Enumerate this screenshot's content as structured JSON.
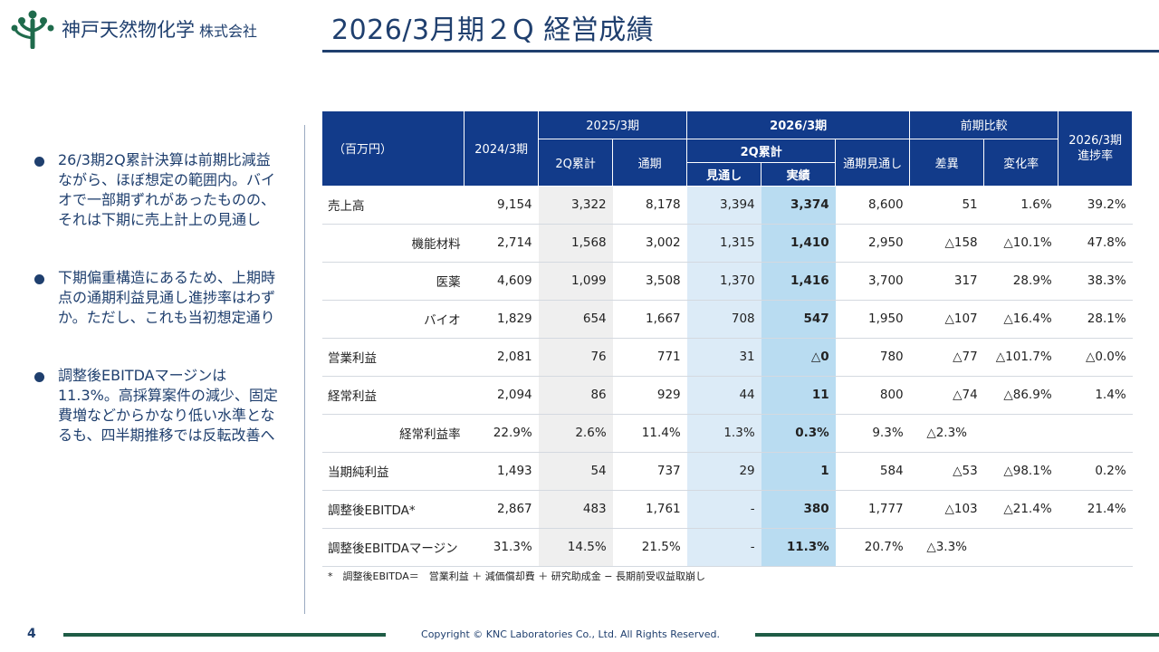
{
  "header": {
    "company_name": "神戸天然物化学",
    "company_suffix": "株式会社",
    "title": "2026/3月期２Q 経営成績"
  },
  "bullets": [
    "26/3期2Q累計決算は前期比減益ながら、ほぼ想定の範囲内。バイオで一部期ずれがあったものの、それは下期に売上計上の見通し",
    "下期偏重構造にあるため、上期時点の通期利益見通し進捗率はわずか。ただし、これも当初想定通り",
    "調整後EBITDAマージンは11.3%。高採算案件の減少、固定費増などからかなり低い水準となるも、四半期推移では反転改善へ"
  ],
  "table": {
    "unit": "（百万円）",
    "col_2024": "2024/3期",
    "col_2025": "2025/3期",
    "col_2025_2q": "2Q累計",
    "col_2025_full": "通期",
    "col_2026": "2026/3期",
    "col_2026_2q": "2Q累計",
    "col_2026_forecast": "見通し",
    "col_2026_actual": "実績",
    "col_2026_full_forecast": "通期見通し",
    "col_yoy": "前期比較",
    "col_diff": "差異",
    "col_rate": "変化率",
    "col_progress": "2026/3期\n進捗率",
    "rows": [
      {
        "label": "売上高",
        "sub": false,
        "v2024": "9,154",
        "v2025_2q": "3,322",
        "v2025_full": "8,178",
        "f2026": "3,394",
        "a2026": "3,374",
        "ff2026": "8,600",
        "diff": "51",
        "rate": "1.6%",
        "progress": "39.2%"
      },
      {
        "label": "機能材料",
        "sub": true,
        "v2024": "2,714",
        "v2025_2q": "1,568",
        "v2025_full": "3,002",
        "f2026": "1,315",
        "a2026": "1,410",
        "ff2026": "2,950",
        "diff": "△158",
        "rate": "△10.1%",
        "progress": "47.8%"
      },
      {
        "label": "医薬",
        "sub": true,
        "v2024": "4,609",
        "v2025_2q": "1,099",
        "v2025_full": "3,508",
        "f2026": "1,370",
        "a2026": "1,416",
        "ff2026": "3,700",
        "diff": "317",
        "rate": "28.9%",
        "progress": "38.3%"
      },
      {
        "label": "バイオ",
        "sub": true,
        "v2024": "1,829",
        "v2025_2q": "654",
        "v2025_full": "1,667",
        "f2026": "708",
        "a2026": "547",
        "ff2026": "1,950",
        "diff": "△107",
        "rate": "△16.4%",
        "progress": "28.1%"
      },
      {
        "label": "営業利益",
        "sub": false,
        "v2024": "2,081",
        "v2025_2q": "76",
        "v2025_full": "771",
        "f2026": "31",
        "a2026": "△0",
        "ff2026": "780",
        "diff": "△77",
        "rate": "△101.7%",
        "progress": "△0.0%"
      },
      {
        "label": "経常利益",
        "sub": false,
        "v2024": "2,094",
        "v2025_2q": "86",
        "v2025_full": "929",
        "f2026": "44",
        "a2026": "11",
        "ff2026": "800",
        "diff": "△74",
        "rate": "△86.9%",
        "progress": "1.4%"
      },
      {
        "label": "経常利益率",
        "sub": true,
        "v2024": "22.9%",
        "v2025_2q": "2.6%",
        "v2025_full": "11.4%",
        "f2026": "1.3%",
        "a2026": "0.3%",
        "ff2026": "9.3%",
        "diff": "△2.3%",
        "rate": "",
        "progress": ""
      },
      {
        "label": "当期純利益",
        "sub": false,
        "v2024": "1,493",
        "v2025_2q": "54",
        "v2025_full": "737",
        "f2026": "29",
        "a2026": "1",
        "ff2026": "584",
        "diff": "△53",
        "rate": "△98.1%",
        "progress": "0.2%"
      },
      {
        "label": "調整後EBITDA*",
        "sub": false,
        "v2024": "2,867",
        "v2025_2q": "483",
        "v2025_full": "1,761",
        "f2026": "-",
        "a2026": "380",
        "ff2026": "1,777",
        "diff": "△103",
        "rate": "△21.4%",
        "progress": "21.4%"
      },
      {
        "label": "調整後EBITDAマージン",
        "sub": false,
        "v2024": "31.3%",
        "v2025_2q": "14.5%",
        "v2025_full": "21.5%",
        "f2026": "-",
        "a2026": "11.3%",
        "ff2026": "20.7%",
        "diff": "△3.3%",
        "rate": "",
        "progress": ""
      }
    ]
  },
  "footnote": "*　調整後EBITDA＝　営業利益 ＋ 減価償却費 ＋ 研究助成金 − 長期前受収益取崩し",
  "footer": {
    "page_number": "4",
    "copyright": "Copyright © KNC Laboratories Co., Ltd. All Rights Reserved."
  },
  "colors": {
    "navy": "#1f3f6e",
    "table_header": "#123b8a",
    "highlight": "#b9dcf1",
    "light_blue": "#dcebf7",
    "logo_green": "#1f6b4c"
  }
}
